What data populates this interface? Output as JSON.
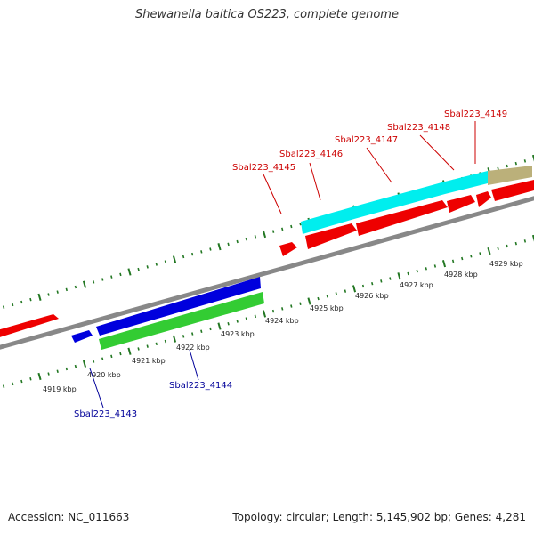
{
  "title": "Shewanella baltica OS223, complete genome",
  "footer": {
    "accession": "Accession: NC_011663",
    "summary": "Topology: circular; Length: 5,145,902 bp; Genes: 4,281"
  },
  "colors": {
    "red": "#ee0000",
    "blue": "#0000dd",
    "green": "#33cc33",
    "cyan": "#00eeee",
    "tan": "#bbb07a",
    "tick": "#227722",
    "backbone": "#888888",
    "label_red": "#cc0000",
    "label_blue": "#000099"
  },
  "scale_labels": [
    "4919 kbp",
    "4920 kbp",
    "4921 kbp",
    "4922 kbp",
    "4923 kbp",
    "4924 kbp",
    "4925 kbp",
    "4926 kbp",
    "4927 kbp",
    "4928 kbp",
    "4929 kbp"
  ],
  "gene_labels": [
    {
      "text": "Sbal223_4143",
      "color": "blue"
    },
    {
      "text": "Sbal223_4144",
      "color": "blue"
    },
    {
      "text": "Sbal223_4145",
      "color": "red"
    },
    {
      "text": "Sbal223_4146",
      "color": "red"
    },
    {
      "text": "Sbal223_4147",
      "color": "red"
    },
    {
      "text": "Sbal223_4148",
      "color": "red"
    },
    {
      "text": "Sbal223_4149",
      "color": "red"
    }
  ]
}
